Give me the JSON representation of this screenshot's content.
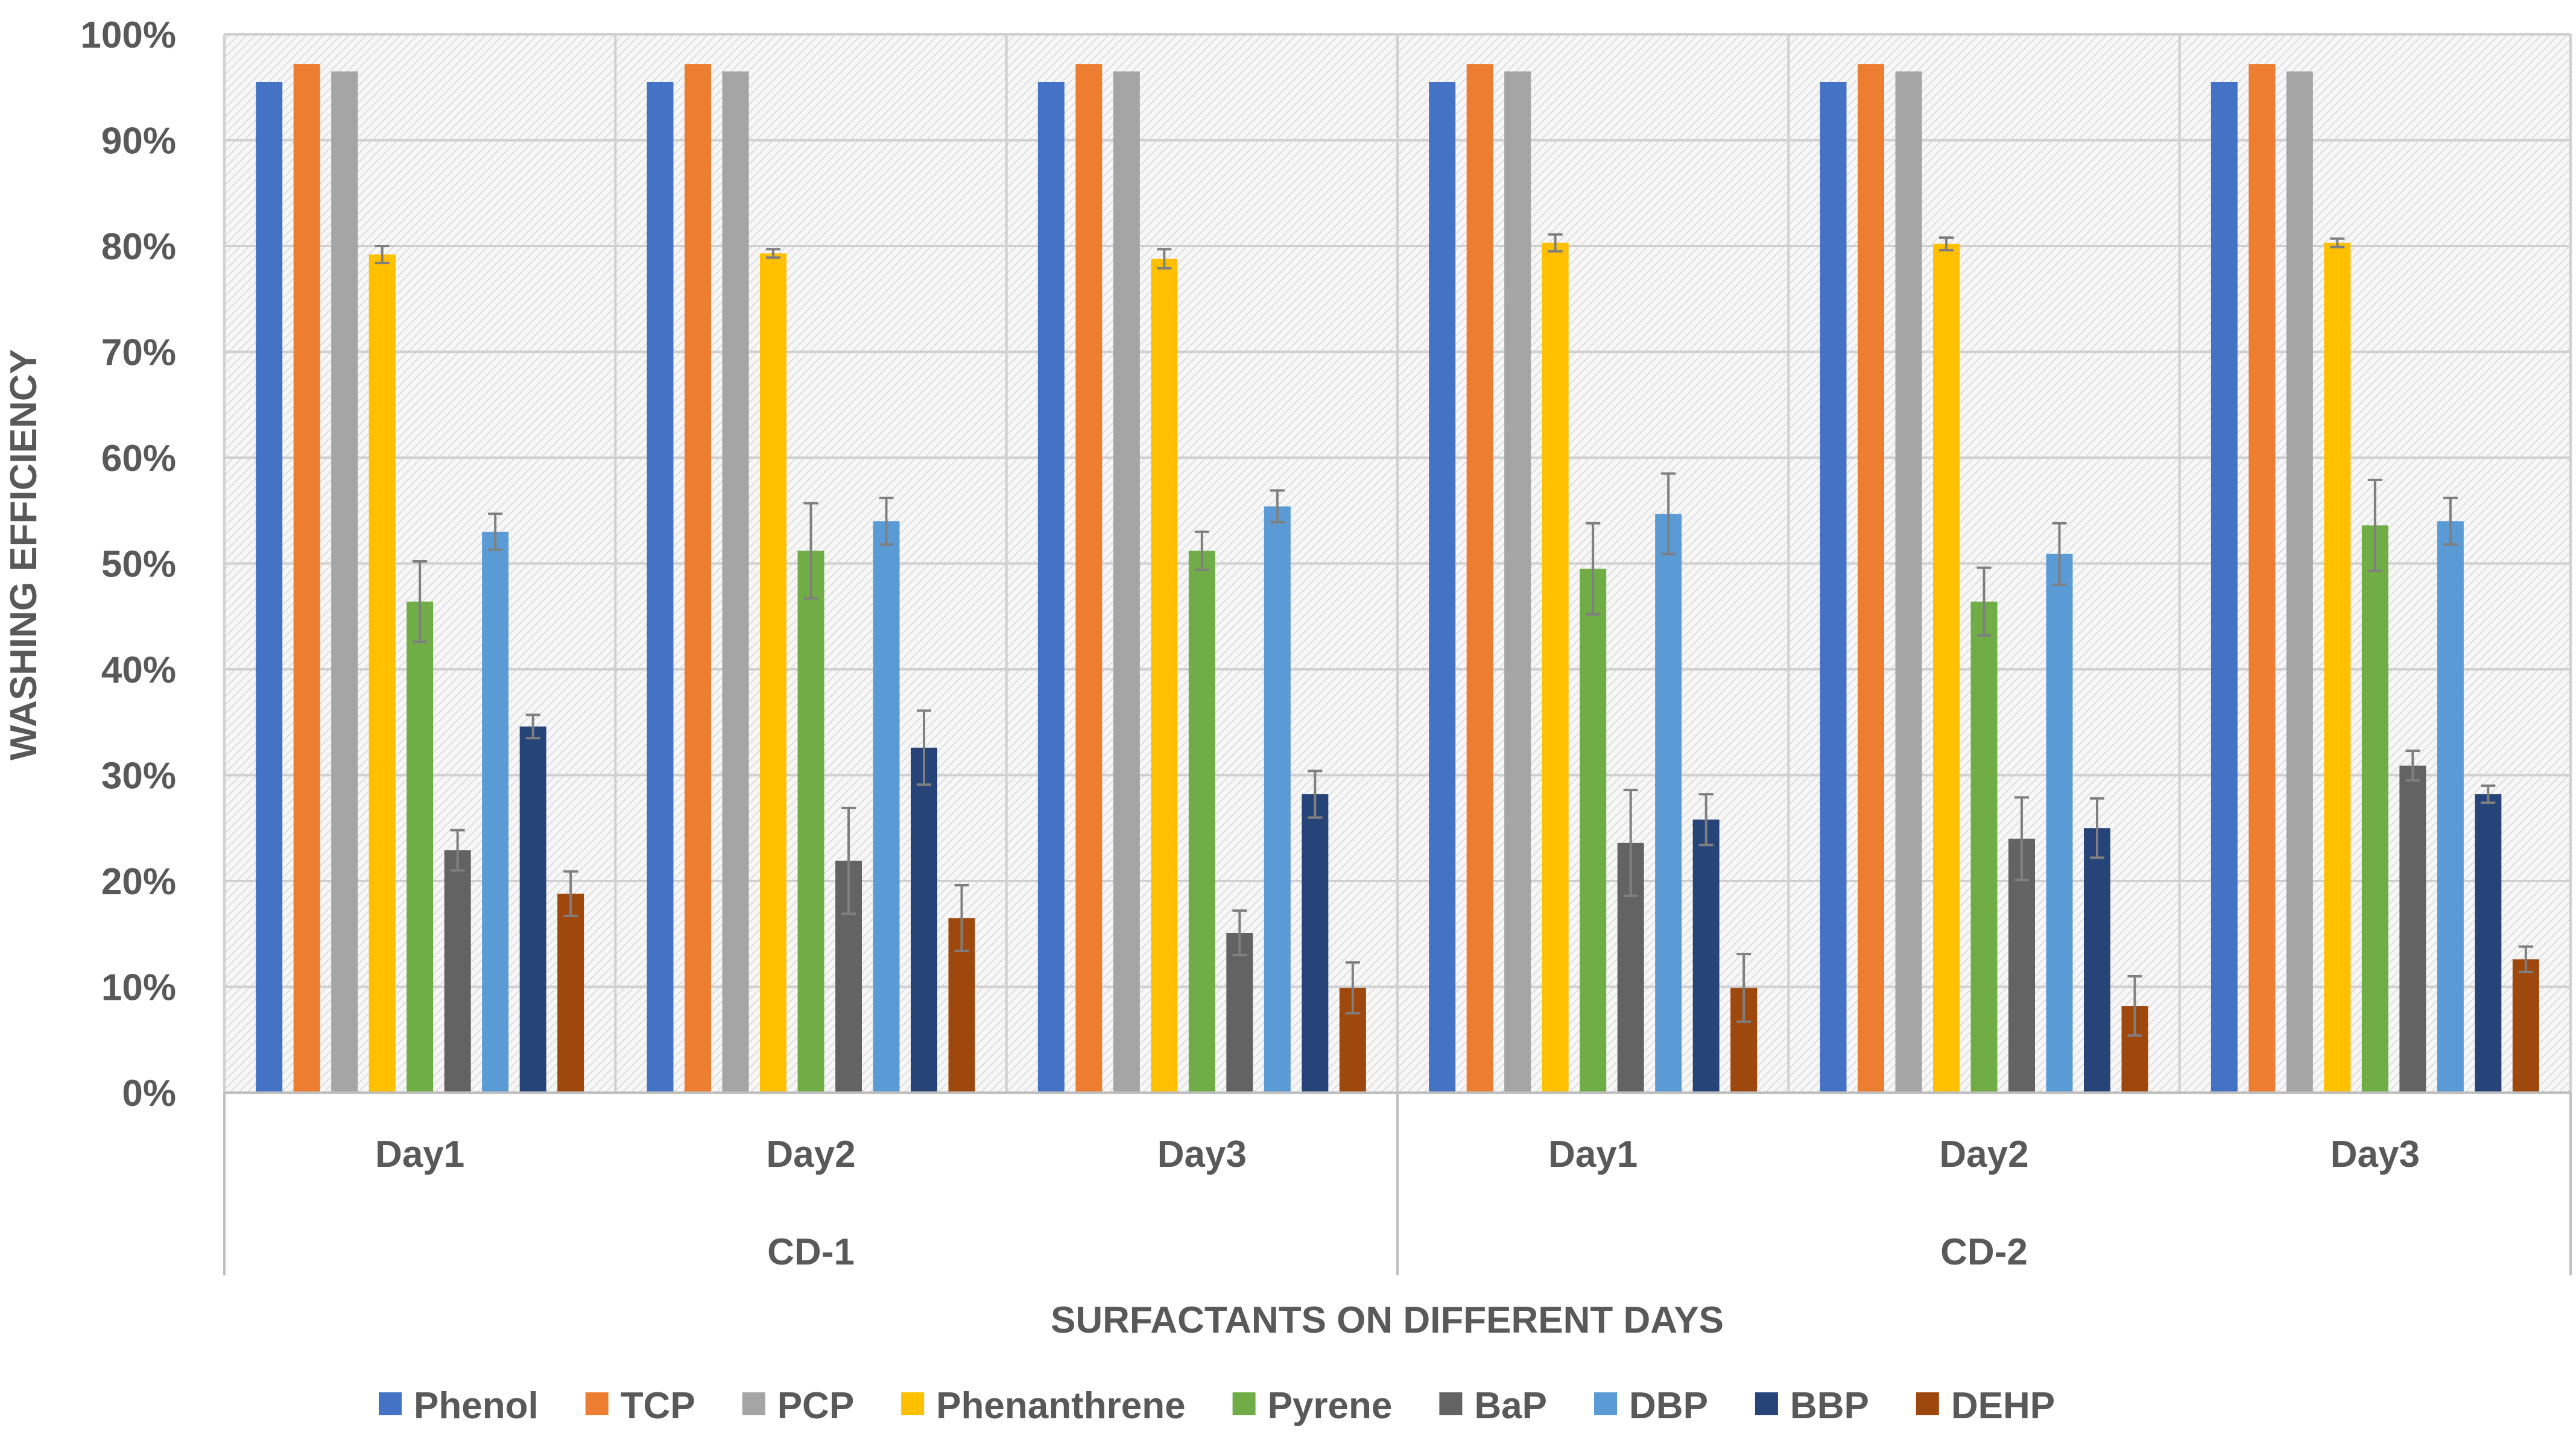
{
  "chart_data": {
    "type": "bar",
    "xlabel": "SURFACTANTS ON DIFFERENT DAYS",
    "ylabel": "WASHING EFFICIENCY",
    "ylim": [
      0,
      100
    ],
    "ytick_labels": [
      "0%",
      "10%",
      "20%",
      "30%",
      "40%",
      "50%",
      "60%",
      "70%",
      "80%",
      "90%",
      "100%"
    ],
    "groups": [
      "CD-1",
      "CD-2"
    ],
    "categories": [
      "Day1",
      "Day2",
      "Day3",
      "Day1",
      "Day2",
      "Day3"
    ],
    "grid": true,
    "legend_position": "bottom",
    "series": [
      {
        "name": "Phenol",
        "color": "#4472C4",
        "values": [
          95.5,
          95.5,
          95.5,
          95.5,
          95.5,
          95.5
        ],
        "errors": [
          0,
          0,
          0,
          0,
          0,
          0
        ]
      },
      {
        "name": "TCP",
        "color": "#ED7D31",
        "values": [
          97.2,
          97.2,
          97.2,
          97.2,
          97.2,
          97.2
        ],
        "errors": [
          0,
          0,
          0,
          0,
          0,
          0
        ]
      },
      {
        "name": "PCP",
        "color": "#A5A5A5",
        "values": [
          96.5,
          96.5,
          96.5,
          96.5,
          96.5,
          96.5
        ],
        "errors": [
          0,
          0,
          0,
          0,
          0,
          0
        ]
      },
      {
        "name": "Phenanthrene",
        "color": "#FFC000",
        "values": [
          79.2,
          79.3,
          78.8,
          80.3,
          80.2,
          80.3
        ],
        "errors": [
          0.8,
          0.4,
          0.9,
          0.8,
          0.6,
          0.4
        ]
      },
      {
        "name": "Pyrene",
        "color": "#70AD47",
        "values": [
          46.4,
          51.2,
          51.2,
          49.5,
          46.4,
          53.6
        ],
        "errors": [
          3.8,
          4.5,
          1.8,
          4.3,
          3.2,
          4.3
        ]
      },
      {
        "name": "BaP",
        "color": "#636363",
        "values": [
          22.9,
          21.9,
          15.1,
          23.6,
          24.0,
          30.9
        ],
        "errors": [
          1.9,
          5.0,
          2.1,
          5.0,
          3.9,
          1.4
        ]
      },
      {
        "name": "DBP",
        "color": "#5B9BD5",
        "values": [
          53.0,
          54.0,
          55.4,
          54.7,
          50.9,
          54.0
        ],
        "errors": [
          1.7,
          2.2,
          1.5,
          3.8,
          2.9,
          2.2
        ]
      },
      {
        "name": "BBP",
        "color": "#264478",
        "values": [
          34.6,
          32.6,
          28.2,
          25.8,
          25.0,
          28.2
        ],
        "errors": [
          1.1,
          3.5,
          2.2,
          2.4,
          2.8,
          0.8
        ]
      },
      {
        "name": "DEHP",
        "color": "#9E480E",
        "values": [
          18.8,
          16.5,
          9.9,
          9.9,
          8.2,
          12.6
        ],
        "errors": [
          2.1,
          3.1,
          2.4,
          3.2,
          2.8,
          1.2
        ]
      }
    ]
  }
}
